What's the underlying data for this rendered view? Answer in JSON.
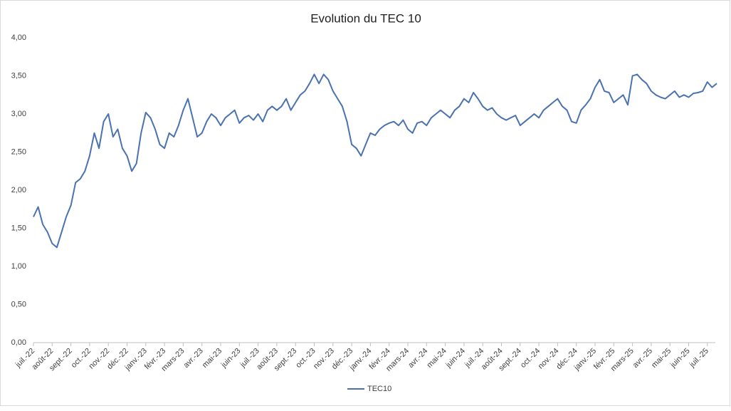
{
  "chart_data": {
    "type": "line",
    "title": "Evolution du TEC 10",
    "categories": [
      "juil.-22",
      null,
      null,
      null,
      "août-22",
      null,
      null,
      null,
      "sept.-22",
      null,
      null,
      null,
      "oct.-22",
      null,
      null,
      null,
      "nov.-22",
      null,
      null,
      null,
      "déc.-22",
      null,
      null,
      null,
      "janv.-23",
      null,
      null,
      null,
      "févr.-23",
      null,
      null,
      null,
      "mars-23",
      null,
      null,
      null,
      "avr.-23",
      null,
      null,
      null,
      "mai-23",
      null,
      null,
      null,
      "juin-23",
      null,
      null,
      null,
      "juil.-23",
      null,
      null,
      null,
      "août-23",
      null,
      null,
      null,
      "sept.-23",
      null,
      null,
      null,
      "oct.-23",
      null,
      null,
      null,
      "nov.-23",
      null,
      null,
      null,
      "déc.-23",
      null,
      null,
      null,
      "janv.-24",
      null,
      null,
      null,
      "févr.-24",
      null,
      null,
      null,
      "mars-24",
      null,
      null,
      null,
      "avr.-24",
      null,
      null,
      null,
      "mai-24",
      null,
      null,
      null,
      "juin-24",
      null,
      null,
      null,
      "juil.-24",
      null,
      null,
      null,
      "août-24",
      null,
      null,
      null,
      "sept.-24",
      null,
      null,
      null,
      "oct.-24",
      null,
      null,
      null,
      "nov.-24",
      null,
      null,
      null,
      "déc.-24",
      null,
      null,
      null,
      "janv.-25",
      null,
      null,
      null,
      "févr.-25",
      null,
      null,
      null,
      "mars-25",
      null,
      null,
      null,
      "avr.-25",
      null,
      null,
      null,
      "mai-25",
      null,
      null,
      null,
      "juin-25",
      null,
      null,
      null,
      "juil.-25",
      null,
      null
    ],
    "series": [
      {
        "name": "TEC10",
        "color": "#4a72b0",
        "values": [
          1.65,
          1.78,
          1.55,
          1.45,
          1.3,
          1.25,
          1.45,
          1.65,
          1.8,
          2.1,
          2.15,
          2.25,
          2.45,
          2.75,
          2.55,
          2.9,
          3.0,
          2.7,
          2.8,
          2.55,
          2.45,
          2.25,
          2.35,
          2.75,
          3.02,
          2.95,
          2.8,
          2.6,
          2.55,
          2.75,
          2.7,
          2.85,
          3.05,
          3.2,
          2.95,
          2.7,
          2.75,
          2.9,
          3.0,
          2.95,
          2.85,
          2.95,
          3.0,
          3.05,
          2.88,
          2.95,
          2.98,
          2.92,
          3.0,
          2.9,
          3.05,
          3.1,
          3.05,
          3.1,
          3.2,
          3.05,
          3.15,
          3.25,
          3.3,
          3.4,
          3.52,
          3.4,
          3.52,
          3.45,
          3.3,
          3.2,
          3.1,
          2.9,
          2.6,
          2.55,
          2.45,
          2.6,
          2.75,
          2.72,
          2.8,
          2.85,
          2.88,
          2.9,
          2.85,
          2.92,
          2.8,
          2.75,
          2.88,
          2.9,
          2.85,
          2.95,
          3.0,
          3.05,
          3.0,
          2.95,
          3.05,
          3.1,
          3.2,
          3.15,
          3.28,
          3.2,
          3.1,
          3.05,
          3.08,
          3.0,
          2.95,
          2.92,
          2.95,
          2.98,
          2.85,
          2.9,
          2.95,
          3.0,
          2.95,
          3.05,
          3.1,
          3.15,
          3.2,
          3.1,
          3.05,
          2.9,
          2.88,
          3.05,
          3.12,
          3.2,
          3.35,
          3.45,
          3.3,
          3.28,
          3.15,
          3.2,
          3.25,
          3.12,
          3.5,
          3.52,
          3.45,
          3.4,
          3.3,
          3.25,
          3.22,
          3.2,
          3.25,
          3.3,
          3.22,
          3.25,
          3.22,
          3.27,
          3.28,
          3.3,
          3.42,
          3.35,
          3.4
        ]
      }
    ],
    "ylim": [
      0,
      4
    ],
    "yticks": [
      {
        "value": 0,
        "label": "0,00"
      },
      {
        "value": 0.5,
        "label": "0,50"
      },
      {
        "value": 1,
        "label": "1,00"
      },
      {
        "value": 1.5,
        "label": "1,50"
      },
      {
        "value": 2,
        "label": "2,00"
      },
      {
        "value": 2.5,
        "label": "2,50"
      },
      {
        "value": 3,
        "label": "3,00"
      },
      {
        "value": 3.5,
        "label": "3,50"
      },
      {
        "value": 4,
        "label": "4,00"
      }
    ],
    "grid": false,
    "legend": "bottom"
  }
}
